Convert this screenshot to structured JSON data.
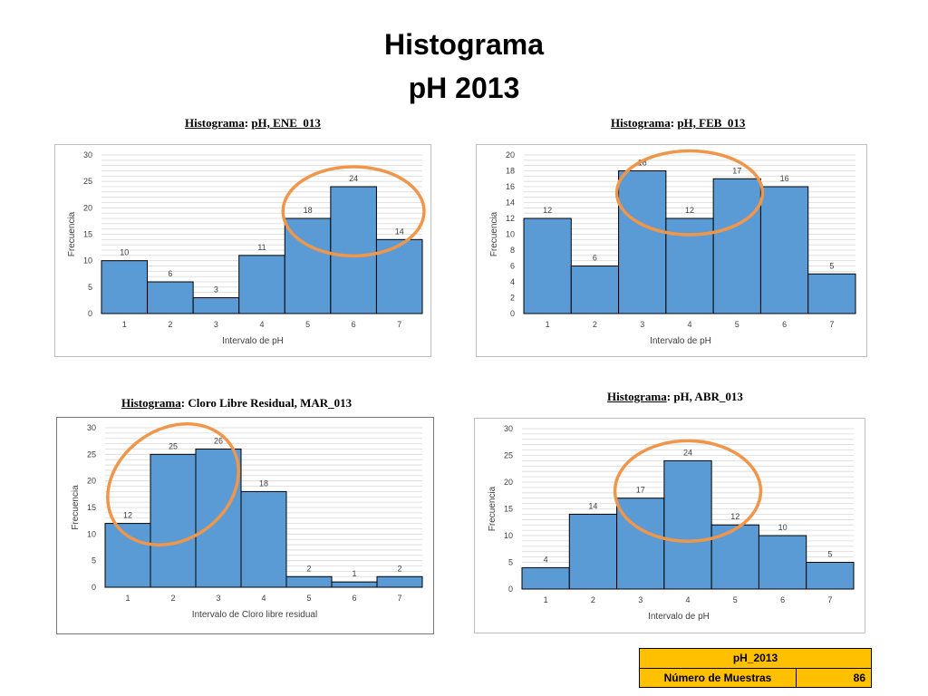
{
  "page": {
    "title_line1": "Histograma",
    "title_line2": "pH 2013"
  },
  "colors": {
    "bar_fill": "#5b9bd5",
    "bar_stroke": "#000000",
    "highlight_ellipse": "#f0964a",
    "table_fill": "#ffc000"
  },
  "chart_data": [
    {
      "type": "bar",
      "title_keyword": "Histograma",
      "title_rest": "pH, ENE_013",
      "categories": [
        "1",
        "2",
        "3",
        "4",
        "5",
        "6",
        "7"
      ],
      "values": [
        10,
        6,
        3,
        11,
        18,
        24,
        14
      ],
      "xlabel": "Intervalo de pH",
      "ylabel": "Frecuencia",
      "ylim": [
        0,
        30
      ],
      "yticks": [
        0,
        5,
        10,
        15,
        20,
        25,
        30
      ],
      "grid": true,
      "highlighted_categories": [
        "5",
        "6",
        "7"
      ]
    },
    {
      "type": "bar",
      "title_keyword": "Histograma",
      "title_rest": "pH, FEB_013",
      "categories": [
        "1",
        "2",
        "3",
        "4",
        "5",
        "6",
        "7"
      ],
      "values": [
        12,
        6,
        18,
        12,
        17,
        16,
        5
      ],
      "xlabel": "Intervalo de pH",
      "ylabel": "Frecuencia",
      "ylim": [
        0,
        20
      ],
      "yticks": [
        0,
        2,
        4,
        6,
        8,
        10,
        12,
        14,
        16,
        18,
        20
      ],
      "grid": true,
      "highlighted_categories": [
        "3",
        "4",
        "5"
      ]
    },
    {
      "type": "bar",
      "title_keyword": "Histograma",
      "title_rest": "Cloro Libre Residual, MAR_013",
      "categories": [
        "1",
        "2",
        "3",
        "4",
        "5",
        "6",
        "7"
      ],
      "values": [
        12,
        25,
        26,
        18,
        2,
        1,
        2
      ],
      "xlabel": "Intervalo de Cloro libre residual",
      "ylabel": "Frecuencia",
      "ylim": [
        0,
        30
      ],
      "yticks": [
        0,
        5,
        10,
        15,
        20,
        25,
        30
      ],
      "grid": true,
      "highlighted_categories": [
        "1",
        "2",
        "3"
      ]
    },
    {
      "type": "bar",
      "title_keyword": "Histograma",
      "title_rest": "pH, ABR_013",
      "categories": [
        "1",
        "2",
        "3",
        "4",
        "5",
        "6",
        "7"
      ],
      "values": [
        4,
        14,
        17,
        24,
        12,
        10,
        5
      ],
      "xlabel": "Intervalo de pH",
      "ylabel": "Frecuencia",
      "ylim": [
        0,
        30
      ],
      "yticks": [
        0,
        5,
        10,
        15,
        20,
        25,
        30
      ],
      "grid": true,
      "highlighted_categories": [
        "3",
        "4",
        "5"
      ]
    }
  ],
  "summary_table": {
    "header": "pH_2013",
    "row_label": "Número de Muestras",
    "row_value": "86"
  }
}
